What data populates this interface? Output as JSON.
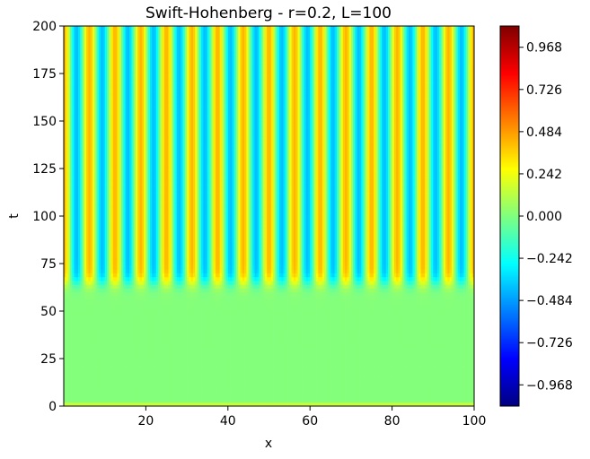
{
  "chart_data": {
    "type": "heatmap",
    "title": "Swift-Hohenberg - r=0.2, L=100",
    "xlabel": "x",
    "ylabel": "t",
    "xlim": [
      0,
      100
    ],
    "ylim": [
      0,
      200
    ],
    "x_ticks": [
      20,
      40,
      60,
      80,
      100
    ],
    "y_ticks": [
      0,
      25,
      50,
      75,
      100,
      125,
      150,
      175,
      200
    ],
    "colormap": "jet",
    "colorbar": {
      "vmin": -1.09,
      "vmax": 1.09,
      "tick_values": [
        0.968,
        0.726,
        0.484,
        0.242,
        0.0,
        -0.242,
        -0.484,
        -0.726,
        -0.968
      ],
      "tick_labels": [
        "0.968",
        "0.726",
        "0.484",
        "0.242",
        "0.000",
        "−0.242",
        "−0.484",
        "−0.726",
        "−0.968"
      ]
    },
    "pattern": {
      "stripe_count": 16,
      "stripe_amplitude": 0.42,
      "stripes_emerge_t": 65,
      "transition_width_t": 8,
      "pre_pattern_level": 0.01,
      "initial_band_t": 2,
      "initial_band_min": -0.4,
      "initial_band_max": 0.7
    },
    "grid": false,
    "legend": "none"
  }
}
